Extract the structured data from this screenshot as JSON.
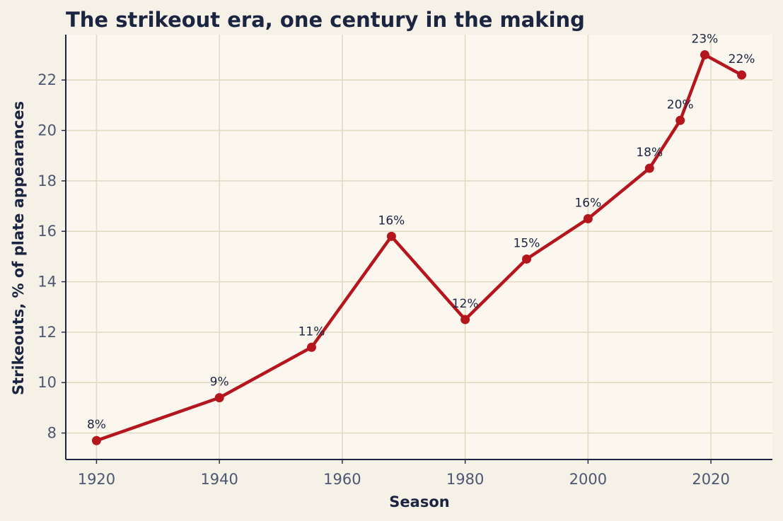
{
  "chart_data": {
    "type": "line",
    "title": "The strikeout era, one century in the making",
    "xlabel": "Season",
    "ylabel": "Strikeouts, % of plate appearances",
    "xlim": [
      1915,
      2030
    ],
    "ylim": [
      6.95,
      23.8
    ],
    "x_ticks": [
      1920,
      1940,
      1960,
      1980,
      2000,
      2020
    ],
    "y_ticks": [
      8,
      10,
      12,
      14,
      16,
      18,
      20,
      22
    ],
    "grid": true,
    "series": [
      {
        "x": [
          1920,
          1940,
          1955,
          1968,
          1980,
          1990,
          2000,
          2010,
          2015,
          2019,
          2025
        ],
        "y": [
          7.7,
          9.4,
          11.4,
          15.8,
          12.5,
          14.9,
          16.5,
          18.5,
          20.4,
          23.0,
          22.2
        ],
        "labels": [
          "8%",
          "9%",
          "11%",
          "16%",
          "12%",
          "15%",
          "16%",
          "18%",
          "20%",
          "23%",
          "22%"
        ]
      }
    ],
    "colors": {
      "line": "#b5161e",
      "axes_background": "#fbf7ef",
      "figure_background": "#f5f1e6",
      "grid": "#e2d9c2",
      "axis": "#1b2440"
    }
  }
}
